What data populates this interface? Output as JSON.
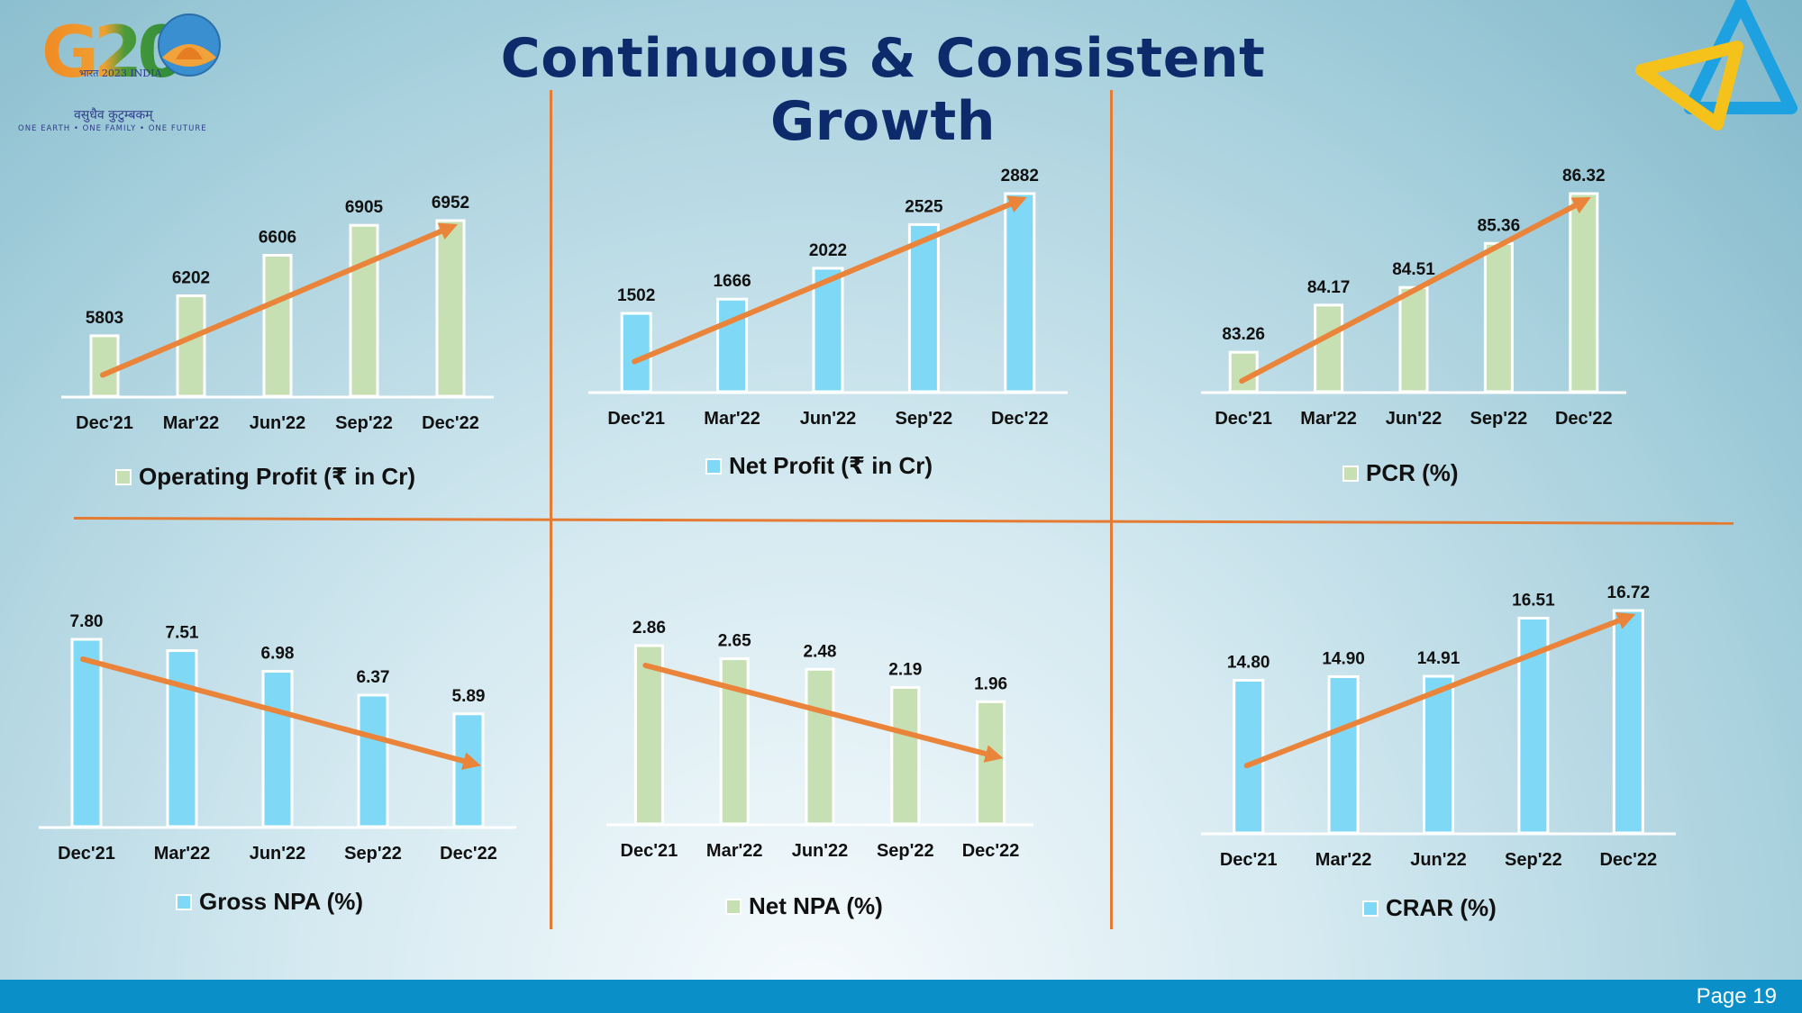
{
  "slide": {
    "title": "Continuous & Consistent Growth",
    "page": "Page 19",
    "logo": {
      "mark": "G20",
      "subtitle": "भारत 2023 INDIA",
      "motto": "वसुधैव कुटुम्बकम्",
      "tagline": "ONE EARTH • ONE FAMILY • ONE FUTURE"
    }
  },
  "colors": {
    "green_bar": "#c6e0b4",
    "blue_bar": "#7fd8f6",
    "arrow": "#e9843a",
    "divider": "#e57b32",
    "title": "#0d2a6b"
  },
  "chart_data": [
    {
      "type": "bar",
      "legend": "Operating Profit (₹ in Cr)",
      "categories": [
        "Dec'21",
        "Mar'22",
        "Jun'22",
        "Sep'22",
        "Dec'22"
      ],
      "values": [
        5803,
        6202,
        6606,
        6905,
        6952
      ],
      "labels": [
        "5803",
        "6202",
        "6606",
        "6905",
        "6952"
      ],
      "color": "green",
      "trend": "up"
    },
    {
      "type": "bar",
      "legend": "Net Profit (₹ in Cr)",
      "categories": [
        "Dec'21",
        "Mar'22",
        "Jun'22",
        "Sep'22",
        "Dec'22"
      ],
      "values": [
        1502,
        1666,
        2022,
        2525,
        2882
      ],
      "labels": [
        "1502",
        "1666",
        "2022",
        "2525",
        "2882"
      ],
      "color": "blue",
      "trend": "up"
    },
    {
      "type": "bar",
      "legend": "PCR (%)",
      "categories": [
        "Dec'21",
        "Mar'22",
        "Jun'22",
        "Sep'22",
        "Dec'22"
      ],
      "values": [
        83.26,
        84.17,
        84.51,
        85.36,
        86.32
      ],
      "labels": [
        "83.26",
        "84.17",
        "84.51",
        "85.36",
        "86.32"
      ],
      "color": "green",
      "trend": "up"
    },
    {
      "type": "bar",
      "legend": "Gross NPA (%)",
      "categories": [
        "Dec'21",
        "Mar'22",
        "Jun'22",
        "Sep'22",
        "Dec'22"
      ],
      "values": [
        7.8,
        7.51,
        6.98,
        6.37,
        5.89
      ],
      "labels": [
        "7.80",
        "7.51",
        "6.98",
        "6.37",
        "5.89"
      ],
      "color": "blue",
      "trend": "down"
    },
    {
      "type": "bar",
      "legend": "Net NPA (%)",
      "categories": [
        "Dec'21",
        "Mar'22",
        "Jun'22",
        "Sep'22",
        "Dec'22"
      ],
      "values": [
        2.86,
        2.65,
        2.48,
        2.19,
        1.96
      ],
      "labels": [
        "2.86",
        "2.65",
        "2.48",
        "2.19",
        "1.96"
      ],
      "color": "green",
      "trend": "down"
    },
    {
      "type": "bar",
      "legend": "CRAR (%)",
      "categories": [
        "Dec'21",
        "Mar'22",
        "Jun'22",
        "Sep'22",
        "Dec'22"
      ],
      "values": [
        14.8,
        14.9,
        14.91,
        16.51,
        16.72
      ],
      "labels": [
        "14.80",
        "14.90",
        "14.91",
        "16.51",
        "16.72"
      ],
      "color": "blue",
      "trend": "up"
    }
  ]
}
